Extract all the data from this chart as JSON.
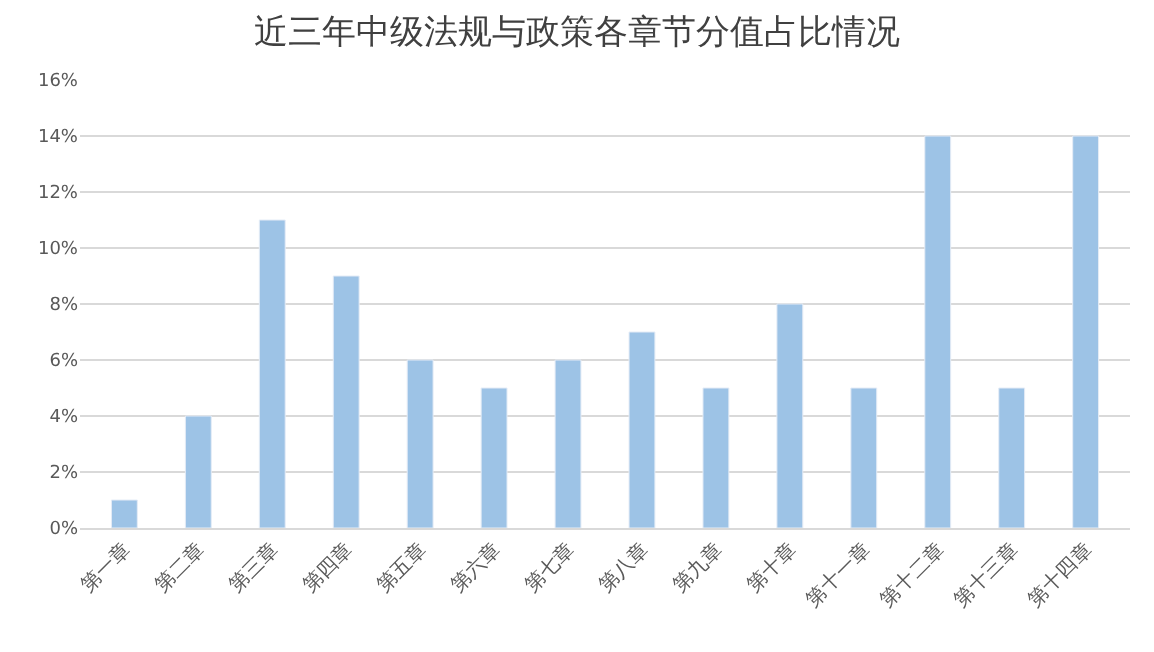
{
  "chart_data": {
    "type": "bar",
    "title": "近三年中级法规与政策各章节分值占比情况",
    "categories": [
      "第一章",
      "第二章",
      "第三章",
      "第四章",
      "第五章",
      "第六章",
      "第七章",
      "第八章",
      "第九章",
      "第十章",
      "第十一章",
      "第十二章",
      "第十三章",
      "第十四章"
    ],
    "values": [
      1,
      4,
      11,
      9,
      6,
      5,
      6,
      7,
      5,
      8,
      5,
      14,
      5,
      14
    ],
    "color": "#9dc3e6",
    "ylim": [
      0,
      16
    ],
    "yticks": [
      {
        "value": 0,
        "label": "0%"
      },
      {
        "value": 2,
        "label": "2%"
      },
      {
        "value": 4,
        "label": "4%"
      },
      {
        "value": 6,
        "label": "6%"
      },
      {
        "value": 8,
        "label": "8%"
      },
      {
        "value": 10,
        "label": "10%"
      },
      {
        "value": 12,
        "label": "12%"
      },
      {
        "value": 14,
        "label": "14%"
      },
      {
        "value": 16,
        "label": "16%"
      }
    ],
    "grid": "y"
  }
}
